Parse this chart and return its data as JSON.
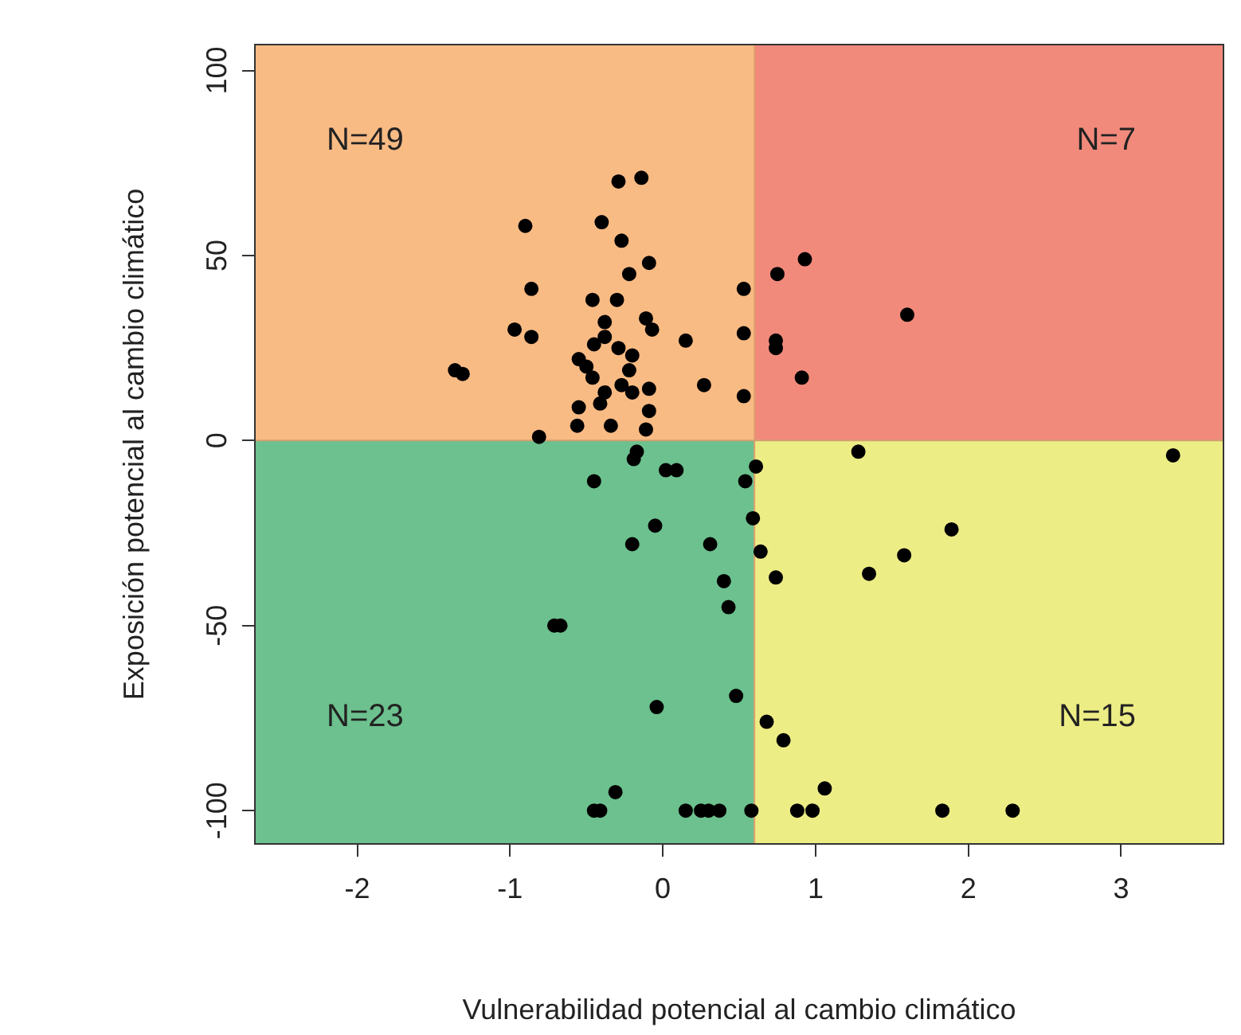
{
  "chart_data": {
    "type": "scatter",
    "xlabel": "Vulnerabilidad potencial al cambio climático",
    "ylabel": "Exposición potencial al cambio climático",
    "xlim": [
      -2.67,
      3.67
    ],
    "ylim": [
      -109,
      107
    ],
    "xticks": [
      -2,
      -1,
      0,
      1,
      2,
      3
    ],
    "yticks": [
      -100,
      -50,
      0,
      50,
      100
    ],
    "grid": false,
    "legend": false,
    "marker": "circle",
    "ref_lines": [
      {
        "axis": "x",
        "value": 0.6,
        "color": "#e0a070"
      },
      {
        "axis": "y",
        "value": 0,
        "color": "#d0a070"
      }
    ],
    "annotations": [
      "N=49",
      "N=7",
      "N=23",
      "N=15"
    ],
    "series": [
      {
        "color": "#000000",
        "x": [
          -0.29,
          -0.14,
          -0.9,
          -0.4,
          -0.27,
          -0.22,
          -0.09,
          -0.86,
          -0.46,
          -0.3,
          -0.38,
          -0.11,
          -0.07,
          -0.97,
          -0.86,
          -1.36,
          -1.31,
          -0.45,
          -0.38,
          -0.29,
          -0.2,
          -0.55,
          -0.5,
          -0.22,
          -0.46,
          -0.27,
          -0.38,
          -0.2,
          -0.09,
          -0.41,
          -0.55,
          -0.09,
          -0.56,
          -0.34,
          -0.11,
          -0.81,
          0.15,
          0.27,
          0.53,
          0.53,
          0.53,
          0.75,
          0.93,
          0.74,
          0.74,
          0.91,
          1.6,
          -0.17,
          -0.19,
          0.02,
          0.09,
          -0.45,
          0.54,
          -0.05,
          -0.2,
          0.31,
          0.4,
          0.43,
          -0.71,
          -0.67,
          0.48,
          -0.04,
          -0.31,
          -0.45,
          -0.41,
          0.15,
          0.25,
          0.3,
          0.37,
          0.58,
          0.61,
          0.59,
          0.64,
          0.74,
          0.68,
          0.79,
          1.06,
          0.88,
          0.98,
          1.28,
          3.34,
          1.89,
          1.58,
          1.35,
          1.83,
          2.29
        ],
        "values": [
          70,
          71,
          58,
          59,
          54,
          45,
          48,
          41,
          38,
          38,
          32,
          33,
          30,
          30,
          28,
          19,
          18,
          26,
          28,
          25,
          23,
          22,
          20,
          19,
          17,
          15,
          13,
          13,
          14,
          10,
          9,
          8,
          4,
          4,
          3,
          1,
          27,
          15,
          12,
          29,
          41,
          45,
          49,
          27,
          25,
          17,
          34,
          -3,
          -5,
          -8,
          -8,
          -11,
          -11,
          -23,
          -28,
          -28,
          -38,
          -45,
          -50,
          -50,
          -69,
          -72,
          -95,
          -100,
          -100,
          -100,
          -100,
          -100,
          -100,
          -100,
          -7,
          -21,
          -30,
          -37,
          -76,
          -81,
          -94,
          -100,
          -100,
          -3,
          -4,
          -24,
          -31,
          -36,
          -100,
          -100
        ]
      }
    ]
  }
}
